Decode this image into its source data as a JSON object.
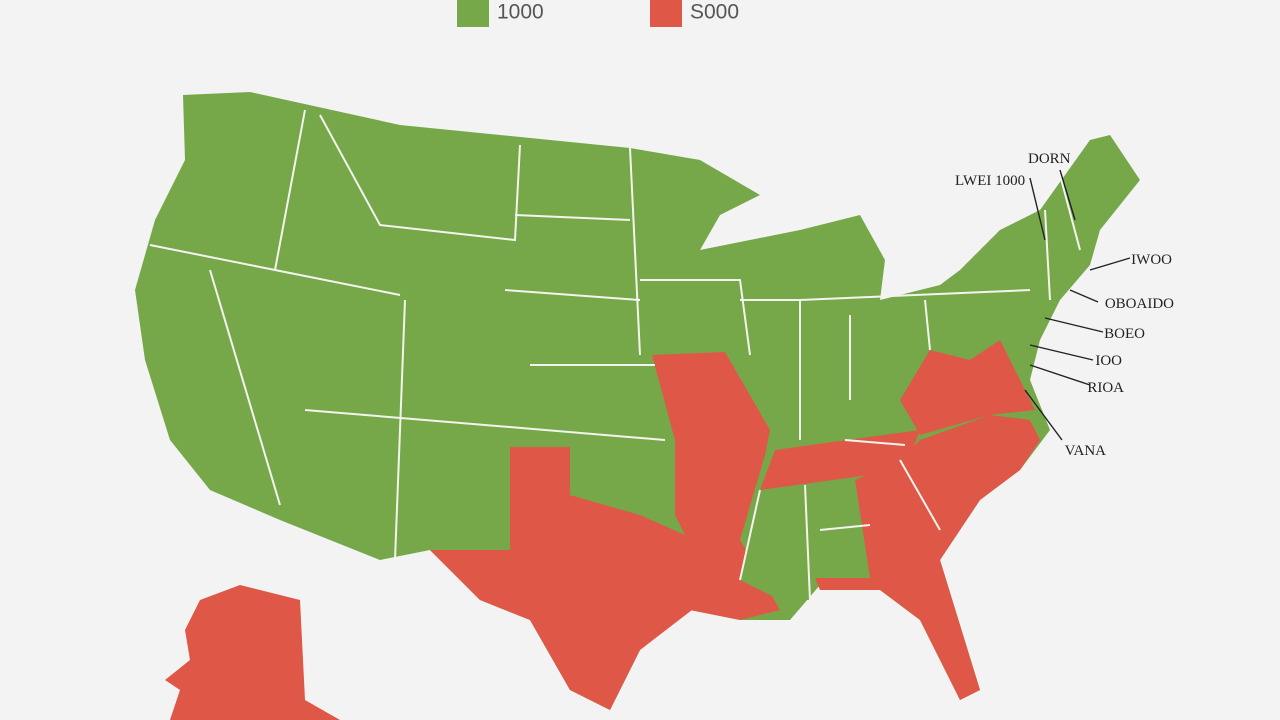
{
  "legend": [
    {
      "label": "1000",
      "color": "#76a84a"
    },
    {
      "label": "S000",
      "color": "#de5747"
    }
  ],
  "callouts": [
    "DORN",
    "LWEI 1000",
    "IWOO",
    "OBOAIDO",
    "BOEO",
    "IOO",
    "RIOA",
    "VANA"
  ]
}
